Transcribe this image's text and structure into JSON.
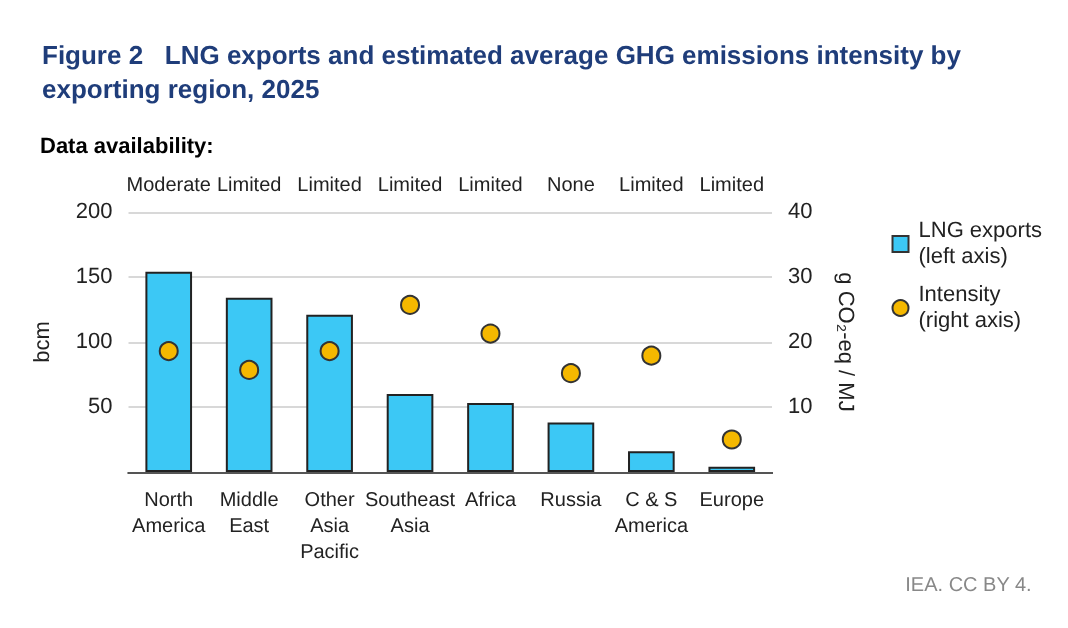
{
  "chart_data": {
    "type": "bar",
    "title": "Figure 2   LNG exports and estimated average GHG emissions intensity by exporting region, 2025",
    "categories": [
      "North America",
      "Middle East",
      "Other Asia Pacific",
      "Southeast Asia",
      "Africa",
      "Russia",
      "C & S America",
      "Europe"
    ],
    "series": [
      {
        "name": "LNG exports\n(left axis)",
        "color": "#3cc8f5",
        "values": [
          154,
          134,
          121,
          60,
          53,
          38,
          16,
          4
        ]
      },
      {
        "name": "Intensity\n(right axis)",
        "type": "scatter",
        "axis": "y2",
        "color": "#f5b800",
        "values": [
          18.6,
          15.7,
          18.6,
          25.7,
          21.3,
          15.2,
          17.9,
          5
        ]
      }
    ],
    "ylabel": "bcm",
    "y2label": "g CO₂-eq / MJ",
    "ylim": [
      0,
      200
    ],
    "yticks": [
      50,
      100,
      150,
      200
    ],
    "y2lim": [
      0,
      40
    ],
    "y2ticks": [
      10,
      20,
      30,
      40
    ],
    "grid": "y",
    "legend": "right",
    "marker": "circle",
    "annotations": [
      "Data availability:",
      "Moderate",
      "Limited",
      "Limited",
      "Limited",
      "Limited",
      "None",
      "Limited",
      "Limited",
      "IEA. CC BY 4."
    ]
  }
}
